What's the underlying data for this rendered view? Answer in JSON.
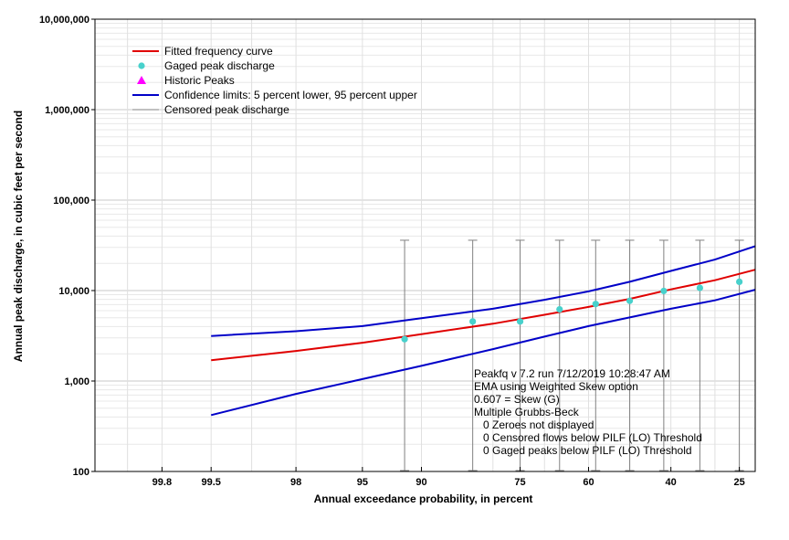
{
  "chart_data": {
    "type": "scatter",
    "xlabel": "Annual exceedance probability, in percent",
    "ylabel": "Annual peak discharge, in cubic feet per second",
    "y_scale": "log",
    "x_scale": "normal-probability",
    "ylim": [
      100,
      10000000
    ],
    "xlim": [
      99.95,
      22
    ],
    "x_ticks": [
      99.8,
      99.5,
      98,
      95,
      90,
      75,
      60,
      40,
      25
    ],
    "x_tick_labels": [
      "99.8",
      "99.5",
      "98",
      "95",
      "90",
      "75",
      "60",
      "40",
      "25"
    ],
    "y_ticks": [
      100,
      1000,
      10000,
      100000,
      1000000,
      10000000
    ],
    "y_tick_labels": [
      "100",
      "1,000",
      "10,000",
      "100,000",
      "1,000,000",
      "10,000,000"
    ],
    "grid": true,
    "legend_position": "top-left",
    "legend": [
      {
        "label": "Fitted frequency curve",
        "symbol": "line",
        "color": "#e00000"
      },
      {
        "label": "Gaged peak discharge",
        "symbol": "circle",
        "color": "#48d1cc"
      },
      {
        "label": "Historic Peaks",
        "symbol": "triangle",
        "color": "#ff00ff"
      },
      {
        "label": "Confidence limits: 5 percent lower, 95 percent upper",
        "symbol": "line",
        "color": "#0000c8"
      },
      {
        "label": "Censored peak discharge",
        "symbol": "thin-line",
        "color": "#808080"
      }
    ],
    "series": [
      {
        "name": "Fitted frequency curve",
        "color": "#e00000",
        "x": [
          99.5,
          98,
          95,
          90,
          80,
          70,
          60,
          50,
          40,
          30,
          22
        ],
        "y": [
          1700,
          2150,
          2650,
          3300,
          4300,
          5400,
          6600,
          8100,
          10300,
          13000,
          17000
        ]
      },
      {
        "name": "Confidence limits: 5 percent lower, 95 percent upper",
        "color": "#0000c8",
        "x": [
          99.5,
          98,
          95,
          90,
          80,
          70,
          60,
          50,
          40,
          30,
          22
        ],
        "y": [
          3150,
          3550,
          4050,
          4950,
          6300,
          7900,
          9800,
          12500,
          16500,
          22000,
          31000
        ]
      },
      {
        "name": "Confidence limits: 5 percent lower, 95 percent upper",
        "color": "#0000c8",
        "x": [
          99.5,
          98,
          95,
          90,
          80,
          70,
          60,
          50,
          40,
          30,
          22
        ],
        "y": [
          420,
          720,
          1050,
          1470,
          2250,
          3100,
          4050,
          5050,
          6300,
          7800,
          10200
        ]
      },
      {
        "name": "Gaged peak discharge",
        "color": "#48d1cc",
        "x": [
          91.7,
          83.3,
          75.0,
          66.7,
          58.3,
          50.0,
          41.7,
          33.3,
          25.0
        ],
        "y": [
          2900,
          4550,
          4550,
          6200,
          7100,
          7700,
          9900,
          10700,
          12500
        ]
      },
      {
        "name": "Censored peak discharge",
        "color": "#808080",
        "x": [
          91.7,
          83.3,
          75.0,
          66.7,
          58.3,
          50.0,
          41.7,
          33.3,
          25.0
        ],
        "low": [
          100,
          100,
          100,
          100,
          100,
          100,
          100,
          100,
          100
        ],
        "high": [
          36000,
          36000,
          36000,
          36000,
          36000,
          36000,
          36000,
          36000,
          36000
        ]
      }
    ],
    "annotations": [
      "Peakfq v 7.2 run 7/12/2019 10:28:47 AM",
      "EMA using Weighted Skew option",
      "0.607 = Skew (G)",
      "Multiple Grubbs-Beck",
      "   0 Zeroes not displayed",
      "   0 Censored flows below PILF (LO) Threshold",
      "   0 Gaged peaks below PILF (LO) Threshold"
    ]
  }
}
